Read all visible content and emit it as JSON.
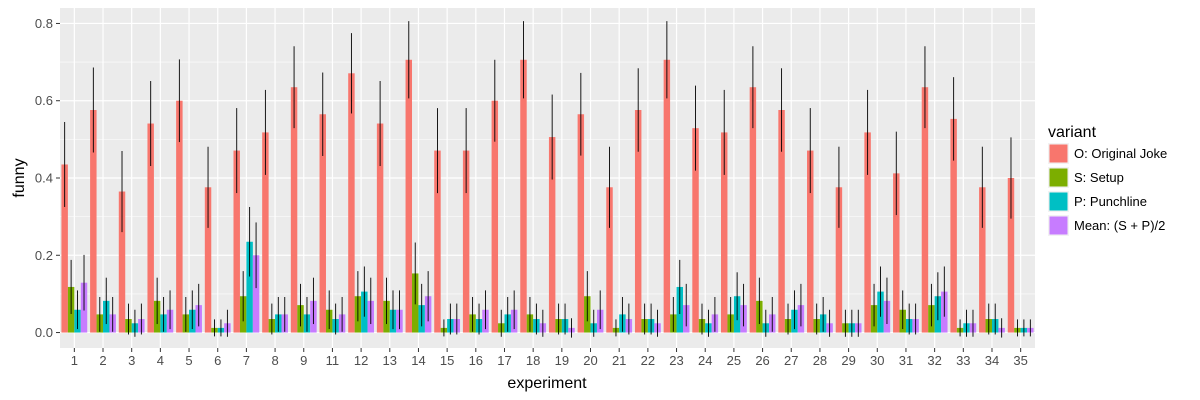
{
  "chart_data": {
    "type": "bar",
    "title": "",
    "xlabel": "experiment",
    "ylabel": "funny",
    "ylim": [
      -0.04,
      0.84
    ],
    "yticks": [
      0.0,
      0.2,
      0.4,
      0.6,
      0.8
    ],
    "ytick_labels": [
      "0.0",
      "0.2",
      "0.4",
      "0.6",
      "0.8"
    ],
    "grid": true,
    "legend_title": "variant",
    "legend_position": "right",
    "categories": [
      "1",
      "2",
      "3",
      "4",
      "5",
      "6",
      "7",
      "8",
      "9",
      "11",
      "12",
      "13",
      "14",
      "15",
      "16",
      "17",
      "18",
      "19",
      "20",
      "21",
      "22",
      "23",
      "24",
      "25",
      "26",
      "27",
      "28",
      "29",
      "30",
      "31",
      "32",
      "33",
      "34",
      "35"
    ],
    "series": [
      {
        "name": "O: Original Joke",
        "color": "#F8766D",
        "values": [
          0.435,
          0.576,
          0.365,
          0.541,
          0.6,
          0.376,
          0.471,
          0.518,
          0.635,
          0.565,
          0.671,
          0.541,
          0.706,
          0.471,
          0.471,
          0.6,
          0.706,
          0.506,
          0.565,
          0.376,
          0.576,
          0.706,
          0.529,
          0.518,
          0.635,
          0.576,
          0.471,
          0.376,
          0.518,
          0.412,
          0.635,
          0.553,
          0.376,
          0.4
        ],
        "errors": [
          0.11,
          0.11,
          0.105,
          0.11,
          0.107,
          0.105,
          0.11,
          0.11,
          0.106,
          0.108,
          0.104,
          0.11,
          0.1,
          0.11,
          0.11,
          0.106,
          0.1,
          0.11,
          0.107,
          0.105,
          0.108,
          0.1,
          0.11,
          0.11,
          0.106,
          0.108,
          0.11,
          0.105,
          0.11,
          0.108,
          0.106,
          0.108,
          0.105,
          0.105
        ]
      },
      {
        "name": "S: Setup",
        "color": "#7CAE00",
        "values": [
          0.118,
          0.047,
          0.035,
          0.082,
          0.047,
          0.012,
          0.094,
          0.035,
          0.071,
          0.059,
          0.094,
          0.082,
          0.153,
          0.012,
          0.047,
          0.024,
          0.047,
          0.035,
          0.094,
          0.012,
          0.035,
          0.047,
          0.035,
          0.047,
          0.082,
          0.035,
          0.035,
          0.024,
          0.071,
          0.059,
          0.071,
          0.012,
          0.035,
          0.012
        ],
        "errors": [
          0.07,
          0.045,
          0.04,
          0.06,
          0.045,
          0.022,
          0.065,
          0.04,
          0.055,
          0.05,
          0.065,
          0.06,
          0.08,
          0.022,
          0.045,
          0.035,
          0.045,
          0.04,
          0.065,
          0.022,
          0.04,
          0.045,
          0.04,
          0.045,
          0.06,
          0.04,
          0.04,
          0.035,
          0.055,
          0.05,
          0.055,
          0.022,
          0.04,
          0.022
        ]
      },
      {
        "name": "P: Punchline",
        "color": "#00BFC4",
        "values": [
          0.059,
          0.082,
          0.024,
          0.047,
          0.059,
          0.012,
          0.235,
          0.047,
          0.047,
          0.035,
          0.106,
          0.059,
          0.071,
          0.035,
          0.035,
          0.047,
          0.035,
          0.035,
          0.024,
          0.047,
          0.035,
          0.118,
          0.024,
          0.094,
          0.024,
          0.059,
          0.047,
          0.024,
          0.106,
          0.035,
          0.094,
          0.024,
          0.035,
          0.012
        ],
        "errors": [
          0.05,
          0.06,
          0.035,
          0.045,
          0.05,
          0.022,
          0.09,
          0.045,
          0.045,
          0.04,
          0.065,
          0.05,
          0.055,
          0.04,
          0.04,
          0.045,
          0.04,
          0.04,
          0.035,
          0.045,
          0.04,
          0.07,
          0.035,
          0.062,
          0.035,
          0.05,
          0.045,
          0.035,
          0.065,
          0.04,
          0.062,
          0.035,
          0.04,
          0.022
        ]
      },
      {
        "name": "Mean: (S + P)/2",
        "color": "#C77CFF",
        "values": [
          0.129,
          0.047,
          0.035,
          0.059,
          0.071,
          0.024,
          0.2,
          0.047,
          0.082,
          0.047,
          0.082,
          0.059,
          0.094,
          0.035,
          0.059,
          0.059,
          0.024,
          0.012,
          0.059,
          0.035,
          0.024,
          0.071,
          0.047,
          0.071,
          0.047,
          0.071,
          0.024,
          0.024,
          0.082,
          0.035,
          0.106,
          0.024,
          0.012,
          0.012
        ],
        "errors": [
          0.072,
          0.045,
          0.04,
          0.05,
          0.055,
          0.035,
          0.085,
          0.045,
          0.06,
          0.045,
          0.06,
          0.05,
          0.065,
          0.04,
          0.05,
          0.05,
          0.035,
          0.025,
          0.05,
          0.04,
          0.035,
          0.055,
          0.045,
          0.055,
          0.045,
          0.055,
          0.035,
          0.035,
          0.06,
          0.04,
          0.065,
          0.035,
          0.025,
          0.022
        ]
      }
    ]
  }
}
